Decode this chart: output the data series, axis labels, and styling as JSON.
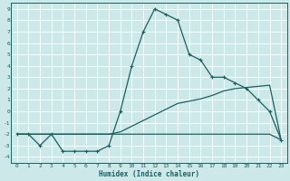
{
  "xlabel": "Humidex (Indice chaleur)",
  "bg_color": "#cce8e8",
  "grid_color": "#b0d8d8",
  "line_color": "#1a6060",
  "xlim": [
    -0.5,
    23.5
  ],
  "ylim": [
    -4.5,
    9.5
  ],
  "xticks": [
    0,
    1,
    2,
    3,
    4,
    5,
    6,
    7,
    8,
    9,
    10,
    11,
    12,
    13,
    14,
    15,
    16,
    17,
    18,
    19,
    20,
    21,
    22,
    23
  ],
  "yticks": [
    -4,
    -3,
    -2,
    -1,
    0,
    1,
    2,
    3,
    4,
    5,
    6,
    7,
    8,
    9
  ],
  "curve1_x": [
    0,
    1,
    2,
    3,
    4,
    5,
    6,
    7,
    8,
    9,
    10,
    11,
    12,
    13,
    14,
    15,
    16,
    17,
    18,
    19,
    20,
    21,
    22,
    23
  ],
  "curve1_y": [
    -2,
    -2,
    -3,
    -2,
    -3.5,
    -3.5,
    -3.5,
    -3.5,
    -3,
    0,
    4,
    7,
    9,
    8.5,
    8,
    5,
    4.5,
    3,
    3,
    2.5,
    2,
    1,
    0,
    -2.5
  ],
  "curve2_x": [
    0,
    1,
    2,
    3,
    4,
    5,
    6,
    7,
    8,
    9,
    10,
    11,
    12,
    13,
    14,
    15,
    16,
    17,
    18,
    19,
    20,
    21,
    22,
    23
  ],
  "curve2_y": [
    -2,
    -2,
    -2,
    -2,
    -2,
    -2,
    -2,
    -2,
    -2,
    -1.8,
    -1.3,
    -0.8,
    -0.3,
    0.2,
    0.7,
    0.9,
    1.1,
    1.4,
    1.8,
    2.0,
    2.1,
    2.2,
    2.3,
    -2.5
  ],
  "curve3_x": [
    0,
    1,
    2,
    3,
    4,
    5,
    6,
    7,
    8,
    9,
    10,
    11,
    12,
    13,
    14,
    15,
    16,
    17,
    18,
    19,
    20,
    21,
    22,
    23
  ],
  "curve3_y": [
    -2,
    -2,
    -2,
    -2,
    -2,
    -2,
    -2,
    -2,
    -2,
    -2,
    -2,
    -2,
    -2,
    -2,
    -2,
    -2,
    -2,
    -2,
    -2,
    -2,
    -2,
    -2,
    -2,
    -2.5
  ]
}
